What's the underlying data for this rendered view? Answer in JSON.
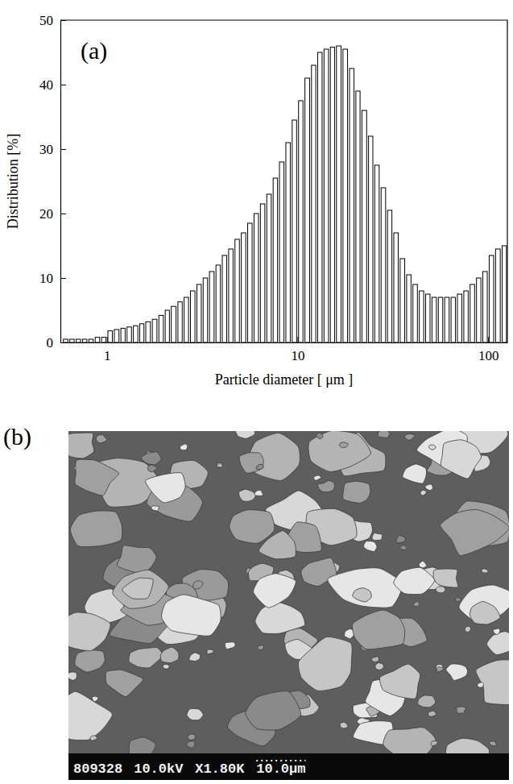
{
  "chart_data": {
    "type": "histogram",
    "title": "(a)",
    "xlabel": "Particle diameter [ μm ]",
    "ylabel": "Distribution [%]",
    "bins": [
      0.584,
      0.631,
      0.681,
      0.736,
      0.794,
      0.858,
      0.926,
      1,
      1.08,
      1.17,
      1.26,
      1.36,
      1.47,
      1.58,
      1.71,
      1.85,
      2,
      2.15,
      2.33,
      2.51,
      2.71,
      2.93,
      3.16,
      3.41,
      3.69,
      3.98,
      4.3,
      4.64,
      5.01,
      5.41,
      5.84,
      6.31,
      6.81,
      7.36,
      7.94,
      8.58,
      9.26,
      10,
      10.8,
      11.7,
      12.6,
      13.6,
      14.7,
      15.8,
      17.1,
      18.5,
      20,
      21.5,
      23.3,
      25.1,
      27.1,
      29.3,
      31.6,
      34.1,
      36.9,
      39.8,
      43,
      46.4,
      50.1,
      54.1,
      58.4,
      63.1,
      68.1,
      73.6,
      79.4,
      85.8,
      92.6,
      100,
      108,
      117,
      126
    ],
    "values": [
      0.5,
      0.5,
      0.5,
      0.5,
      0.5,
      0.8,
      0.8,
      1.8,
      2.0,
      2.2,
      2.4,
      2.6,
      2.9,
      3.2,
      3.6,
      4.2,
      5.0,
      5.6,
      6.3,
      7.0,
      8.0,
      9.0,
      10.0,
      11.0,
      12.0,
      13.5,
      14.5,
      16.0,
      17.0,
      18.5,
      20.0,
      21.5,
      23.0,
      25.5,
      28.0,
      31.0,
      34.5,
      37.5,
      41.0,
      43.0,
      45.0,
      45.5,
      45.8,
      46.0,
      45.5,
      42.5,
      39.0,
      36.0,
      32.0,
      27.5,
      24.0,
      20.5,
      17.0,
      13.0,
      10.5,
      9.0,
      8.0,
      7.5,
      7.0,
      7.0,
      7.0,
      7.0,
      7.5,
      8.0,
      9.0,
      10.0,
      11.0,
      13.5,
      14.5,
      15.0
    ],
    "color": "#ffffff",
    "log": "x",
    "grid": false,
    "xlim": [
      0.57,
      126
    ],
    "xticks": [
      1,
      10,
      100
    ],
    "ylim": [
      0,
      50
    ],
    "yticks": [
      0,
      10,
      20,
      30,
      40,
      50
    ]
  },
  "image": {
    "label": "(b)",
    "caption": [
      "809328",
      "10.0kV",
      "X1.80K",
      "10.0μm"
    ]
  }
}
